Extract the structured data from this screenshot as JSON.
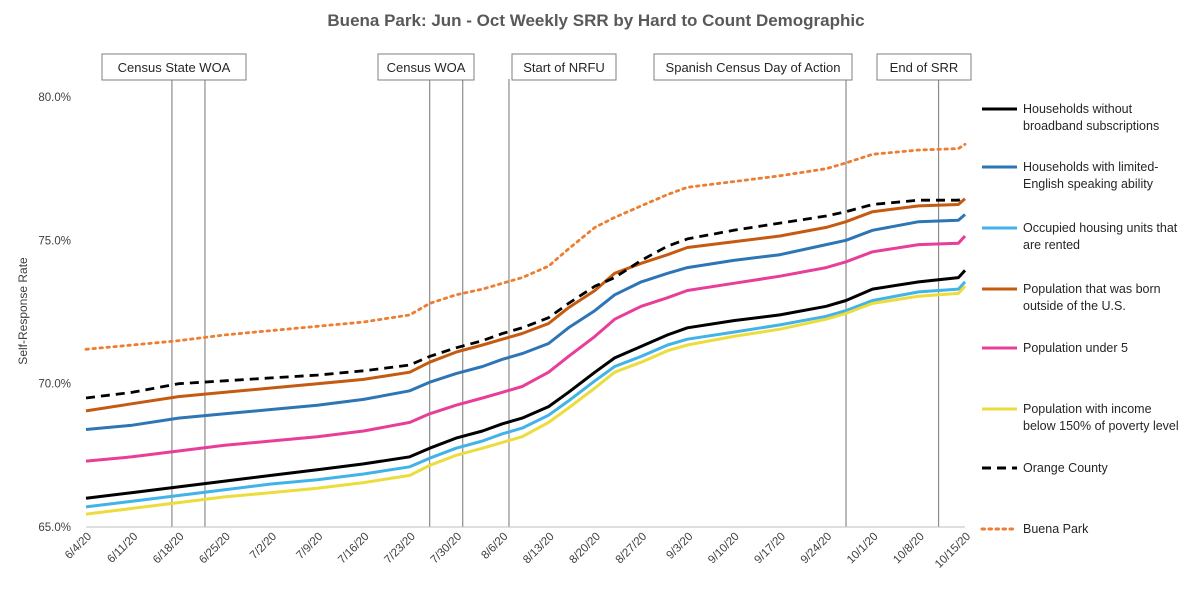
{
  "chart_data": {
    "type": "line",
    "title": "Buena Park: Jun - Oct Weekly SRR by Hard to Count Demographic",
    "xlabel": "",
    "ylabel": "Self-Response Rate",
    "ylim": [
      65.0,
      80.0
    ],
    "yticks": [
      "65.0%",
      "70.0%",
      "75.0%",
      "80.0%"
    ],
    "ytick_values": [
      65,
      70,
      75,
      80
    ],
    "x_tick_labels": [
      "6/4/20",
      "6/11/20",
      "6/18/20",
      "6/25/20",
      "7/2/20",
      "7/9/20",
      "7/16/20",
      "7/23/20",
      "7/30/20",
      "8/6/20",
      "8/13/20",
      "8/20/20",
      "8/27/20",
      "9/3/20",
      "9/10/20",
      "9/17/20",
      "9/24/20",
      "10/1/20",
      "10/8/20",
      "10/15/20"
    ],
    "x_days": [
      0,
      7,
      14,
      21,
      28,
      35,
      42,
      49,
      56,
      63,
      70,
      77,
      84,
      91,
      98,
      105,
      112,
      119,
      126,
      133
    ],
    "xlim": [
      0,
      133
    ],
    "annotations": [
      {
        "label": "Census State WOA",
        "lines_at_day": [
          13,
          18
        ]
      },
      {
        "label": "Census WOA",
        "lines_at_day": [
          52,
          57
        ]
      },
      {
        "label": "Start of NRFU",
        "lines_at_day": [
          64
        ]
      },
      {
        "label": "Spanish Census Day of Action",
        "lines_at_day": [
          115
        ]
      },
      {
        "label": "End of SRR",
        "lines_at_day": [
          129
        ]
      }
    ],
    "series": [
      {
        "name": "Households without broadband subscriptions",
        "color": "#000000",
        "style": "solid",
        "points": [
          [
            0,
            66.0
          ],
          [
            7,
            66.2
          ],
          [
            14,
            66.4
          ],
          [
            21,
            66.6
          ],
          [
            28,
            66.8
          ],
          [
            35,
            67.0
          ],
          [
            42,
            67.2
          ],
          [
            49,
            67.45
          ],
          [
            52,
            67.75
          ],
          [
            56,
            68.1
          ],
          [
            60,
            68.35
          ],
          [
            63,
            68.6
          ],
          [
            66,
            68.8
          ],
          [
            70,
            69.2
          ],
          [
            73,
            69.7
          ],
          [
            77,
            70.4
          ],
          [
            80,
            70.9
          ],
          [
            84,
            71.3
          ],
          [
            88,
            71.7
          ],
          [
            91,
            71.95
          ],
          [
            98,
            72.2
          ],
          [
            105,
            72.4
          ],
          [
            112,
            72.7
          ],
          [
            115,
            72.9
          ],
          [
            119,
            73.3
          ],
          [
            126,
            73.55
          ],
          [
            132,
            73.7
          ],
          [
            133,
            73.95
          ]
        ]
      },
      {
        "name": "Households with limited-English speaking ability",
        "color": "#2e75b6",
        "style": "solid",
        "points": [
          [
            0,
            68.4
          ],
          [
            7,
            68.55
          ],
          [
            14,
            68.8
          ],
          [
            21,
            68.95
          ],
          [
            28,
            69.1
          ],
          [
            35,
            69.25
          ],
          [
            42,
            69.45
          ],
          [
            49,
            69.75
          ],
          [
            52,
            70.05
          ],
          [
            56,
            70.35
          ],
          [
            60,
            70.6
          ],
          [
            63,
            70.85
          ],
          [
            66,
            71.05
          ],
          [
            70,
            71.4
          ],
          [
            73,
            71.95
          ],
          [
            77,
            72.55
          ],
          [
            80,
            73.1
          ],
          [
            84,
            73.55
          ],
          [
            88,
            73.85
          ],
          [
            91,
            74.05
          ],
          [
            98,
            74.3
          ],
          [
            105,
            74.5
          ],
          [
            112,
            74.85
          ],
          [
            115,
            75.0
          ],
          [
            119,
            75.35
          ],
          [
            126,
            75.65
          ],
          [
            132,
            75.7
          ],
          [
            133,
            75.9
          ]
        ]
      },
      {
        "name": "Occupied housing units that are rented",
        "color": "#41b3e8",
        "style": "solid",
        "points": [
          [
            0,
            65.7
          ],
          [
            7,
            65.9
          ],
          [
            14,
            66.1
          ],
          [
            21,
            66.3
          ],
          [
            28,
            66.5
          ],
          [
            35,
            66.65
          ],
          [
            42,
            66.85
          ],
          [
            49,
            67.1
          ],
          [
            52,
            67.4
          ],
          [
            56,
            67.75
          ],
          [
            60,
            68.0
          ],
          [
            63,
            68.25
          ],
          [
            66,
            68.45
          ],
          [
            70,
            68.9
          ],
          [
            73,
            69.4
          ],
          [
            77,
            70.1
          ],
          [
            80,
            70.6
          ],
          [
            84,
            70.95
          ],
          [
            88,
            71.35
          ],
          [
            91,
            71.55
          ],
          [
            98,
            71.8
          ],
          [
            105,
            72.05
          ],
          [
            112,
            72.35
          ],
          [
            115,
            72.55
          ],
          [
            119,
            72.9
          ],
          [
            126,
            73.2
          ],
          [
            132,
            73.3
          ],
          [
            133,
            73.55
          ]
        ]
      },
      {
        "name": "Population that was born outside of the U.S.",
        "color": "#c55a11",
        "style": "solid",
        "points": [
          [
            0,
            69.05
          ],
          [
            7,
            69.3
          ],
          [
            14,
            69.55
          ],
          [
            21,
            69.7
          ],
          [
            28,
            69.85
          ],
          [
            35,
            70.0
          ],
          [
            42,
            70.15
          ],
          [
            49,
            70.4
          ],
          [
            52,
            70.75
          ],
          [
            56,
            71.1
          ],
          [
            60,
            71.35
          ],
          [
            63,
            71.55
          ],
          [
            66,
            71.75
          ],
          [
            70,
            72.1
          ],
          [
            73,
            72.65
          ],
          [
            77,
            73.25
          ],
          [
            80,
            73.85
          ],
          [
            84,
            74.2
          ],
          [
            88,
            74.5
          ],
          [
            91,
            74.75
          ],
          [
            98,
            74.95
          ],
          [
            105,
            75.15
          ],
          [
            112,
            75.45
          ],
          [
            115,
            75.65
          ],
          [
            119,
            76.0
          ],
          [
            126,
            76.2
          ],
          [
            132,
            76.25
          ],
          [
            133,
            76.45
          ]
        ]
      },
      {
        "name": "Population under 5",
        "color": "#e83e99",
        "style": "solid",
        "points": [
          [
            0,
            67.3
          ],
          [
            7,
            67.45
          ],
          [
            14,
            67.65
          ],
          [
            21,
            67.85
          ],
          [
            28,
            68.0
          ],
          [
            35,
            68.15
          ],
          [
            42,
            68.35
          ],
          [
            49,
            68.65
          ],
          [
            52,
            68.95
          ],
          [
            56,
            69.25
          ],
          [
            60,
            69.5
          ],
          [
            63,
            69.7
          ],
          [
            66,
            69.9
          ],
          [
            70,
            70.4
          ],
          [
            73,
            70.95
          ],
          [
            77,
            71.65
          ],
          [
            80,
            72.25
          ],
          [
            84,
            72.7
          ],
          [
            88,
            73.0
          ],
          [
            91,
            73.25
          ],
          [
            98,
            73.5
          ],
          [
            105,
            73.75
          ],
          [
            112,
            74.05
          ],
          [
            115,
            74.25
          ],
          [
            119,
            74.6
          ],
          [
            126,
            74.85
          ],
          [
            132,
            74.9
          ],
          [
            133,
            75.15
          ]
        ]
      },
      {
        "name": "Population with income below 150% of poverty level",
        "color": "#ecdc3c",
        "style": "solid",
        "points": [
          [
            0,
            65.45
          ],
          [
            7,
            65.65
          ],
          [
            14,
            65.85
          ],
          [
            21,
            66.05
          ],
          [
            28,
            66.2
          ],
          [
            35,
            66.35
          ],
          [
            42,
            66.55
          ],
          [
            49,
            66.8
          ],
          [
            52,
            67.15
          ],
          [
            56,
            67.5
          ],
          [
            60,
            67.75
          ],
          [
            63,
            67.95
          ],
          [
            66,
            68.15
          ],
          [
            70,
            68.65
          ],
          [
            73,
            69.15
          ],
          [
            77,
            69.85
          ],
          [
            80,
            70.4
          ],
          [
            84,
            70.75
          ],
          [
            88,
            71.15
          ],
          [
            91,
            71.35
          ],
          [
            98,
            71.65
          ],
          [
            105,
            71.9
          ],
          [
            112,
            72.25
          ],
          [
            115,
            72.45
          ],
          [
            119,
            72.8
          ],
          [
            126,
            73.05
          ],
          [
            132,
            73.15
          ],
          [
            133,
            73.4
          ]
        ]
      },
      {
        "name": "Orange County",
        "color": "#000000",
        "style": "dashed",
        "points": [
          [
            0,
            69.5
          ],
          [
            7,
            69.7
          ],
          [
            14,
            70.0
          ],
          [
            21,
            70.1
          ],
          [
            28,
            70.2
          ],
          [
            35,
            70.3
          ],
          [
            42,
            70.45
          ],
          [
            49,
            70.65
          ],
          [
            52,
            70.95
          ],
          [
            56,
            71.25
          ],
          [
            60,
            71.5
          ],
          [
            63,
            71.75
          ],
          [
            66,
            71.95
          ],
          [
            70,
            72.3
          ],
          [
            73,
            72.8
          ],
          [
            77,
            73.4
          ],
          [
            80,
            73.7
          ],
          [
            84,
            74.3
          ],
          [
            88,
            74.8
          ],
          [
            91,
            75.05
          ],
          [
            98,
            75.35
          ],
          [
            105,
            75.6
          ],
          [
            112,
            75.85
          ],
          [
            115,
            76.0
          ],
          [
            119,
            76.25
          ],
          [
            126,
            76.4
          ],
          [
            132,
            76.4
          ],
          [
            133,
            76.5
          ]
        ]
      },
      {
        "name": "Buena Park",
        "color": "#ed7d31",
        "style": "dotted",
        "points": [
          [
            0,
            71.2
          ],
          [
            7,
            71.35
          ],
          [
            14,
            71.5
          ],
          [
            21,
            71.7
          ],
          [
            28,
            71.85
          ],
          [
            35,
            72.0
          ],
          [
            42,
            72.15
          ],
          [
            49,
            72.4
          ],
          [
            52,
            72.8
          ],
          [
            56,
            73.1
          ],
          [
            60,
            73.3
          ],
          [
            63,
            73.5
          ],
          [
            66,
            73.7
          ],
          [
            70,
            74.1
          ],
          [
            73,
            74.7
          ],
          [
            77,
            75.45
          ],
          [
            80,
            75.8
          ],
          [
            84,
            76.2
          ],
          [
            88,
            76.6
          ],
          [
            91,
            76.85
          ],
          [
            98,
            77.05
          ],
          [
            105,
            77.25
          ],
          [
            112,
            77.5
          ],
          [
            115,
            77.7
          ],
          [
            119,
            78.0
          ],
          [
            126,
            78.15
          ],
          [
            132,
            78.2
          ],
          [
            133,
            78.35
          ]
        ]
      }
    ]
  }
}
